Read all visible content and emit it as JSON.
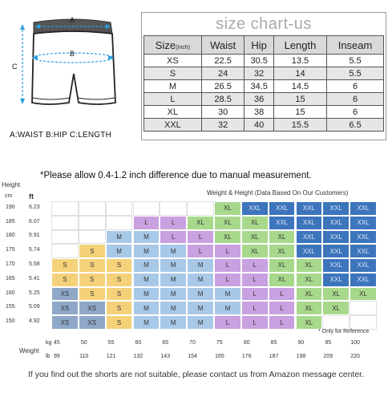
{
  "illustration": {
    "labels": {
      "a": "A",
      "b": "B",
      "c": "C"
    },
    "legend": "A:WAIST  B:HIP  C:LENGTH"
  },
  "size_chart": {
    "title": "size chart-us",
    "headers": {
      "size": "Size",
      "size_unit": "(Inch)",
      "waist": "Waist",
      "hip": "Hip",
      "length": "Length",
      "inseam": "Inseam"
    },
    "rows": [
      {
        "size": "XS",
        "waist": "22.5",
        "hip": "30.5",
        "length": "13.5",
        "inseam": "5.5"
      },
      {
        "size": "S",
        "waist": "24",
        "hip": "32",
        "length": "14",
        "inseam": "5.5"
      },
      {
        "size": "M",
        "waist": "26.5",
        "hip": "34.5",
        "length": "14.5",
        "inseam": "6"
      },
      {
        "size": "L",
        "waist": "28.5",
        "hip": "36",
        "length": "15",
        "inseam": "6"
      },
      {
        "size": "XL",
        "waist": "30",
        "hip": "38",
        "length": "15",
        "inseam": "6"
      },
      {
        "size": "XXL",
        "waist": "32",
        "hip": "40",
        "length": "15.5",
        "inseam": "6.5"
      }
    ]
  },
  "note": "*Please allow 0.4-1.2 inch difference due to manual measurement.",
  "grid": {
    "title": "Weight & Height  (Data Based On Our Customers)",
    "height_label": "Height",
    "cm_label": "cm",
    "ft_label": "ft",
    "weight_label": "Weight",
    "kg_label": "kg",
    "lb_label": "lb",
    "ref_note": "* Only for Reference",
    "heights_cm": [
      "190",
      "185",
      "180",
      "175",
      "170",
      "165",
      "160",
      "155",
      "150"
    ],
    "heights_ft": [
      "6.23",
      "6.07",
      "5.91",
      "5.74",
      "5.58",
      "5.41",
      "5.25",
      "5.09",
      "4.92"
    ],
    "weights_kg": [
      "45",
      "50",
      "55",
      "60",
      "65",
      "70",
      "75",
      "80",
      "85",
      "90",
      "95",
      "100"
    ],
    "weights_lb": [
      "99",
      "110",
      "121",
      "132",
      "143",
      "154",
      "165",
      "176",
      "187",
      "198",
      "209",
      "220"
    ],
    "colors": {
      "XS": "#8fa8c8",
      "S": "#f5d27a",
      "M": "#a8c8e8",
      "L": "#c9a0e0",
      "XL": "#a8d88c",
      "XXL": "#3d75bd",
      "empty": "#ffffff"
    },
    "rows": [
      [
        "",
        "",
        "",
        "",
        "",
        "",
        "XL",
        "XXL",
        "XXL",
        "XXL",
        "XXL",
        "XXL"
      ],
      [
        "",
        "",
        "",
        "L",
        "L",
        "XL",
        "XL",
        "XL",
        "XXL",
        "XXL",
        "XXL",
        "XXL"
      ],
      [
        "",
        "",
        "M",
        "M",
        "L",
        "L",
        "XL",
        "XL",
        "XL",
        "XXL",
        "XXL",
        "XXL"
      ],
      [
        "",
        "S",
        "M",
        "M",
        "M",
        "L",
        "L",
        "XL",
        "XL",
        "XXL",
        "XXL",
        "XXL"
      ],
      [
        "S",
        "S",
        "S",
        "M",
        "M",
        "M",
        "L",
        "L",
        "XL",
        "XL",
        "XXL",
        "XXL"
      ],
      [
        "S",
        "S",
        "S",
        "M",
        "M",
        "M",
        "L",
        "L",
        "XL",
        "XL",
        "XXL",
        "XXL"
      ],
      [
        "XS",
        "S",
        "S",
        "M",
        "M",
        "M",
        "M",
        "L",
        "L",
        "XL",
        "XL",
        "XL"
      ],
      [
        "XS",
        "XS",
        "S",
        "M",
        "M",
        "M",
        "M",
        "L",
        "L",
        "XL",
        "XL",
        ""
      ],
      [
        "XS",
        "XS",
        "S",
        "M",
        "M",
        "M",
        "L",
        "L",
        "L",
        "XL",
        "",
        ""
      ]
    ]
  },
  "footer": "If you find out the shorts are not suitable, please contact us from Amazon message center."
}
